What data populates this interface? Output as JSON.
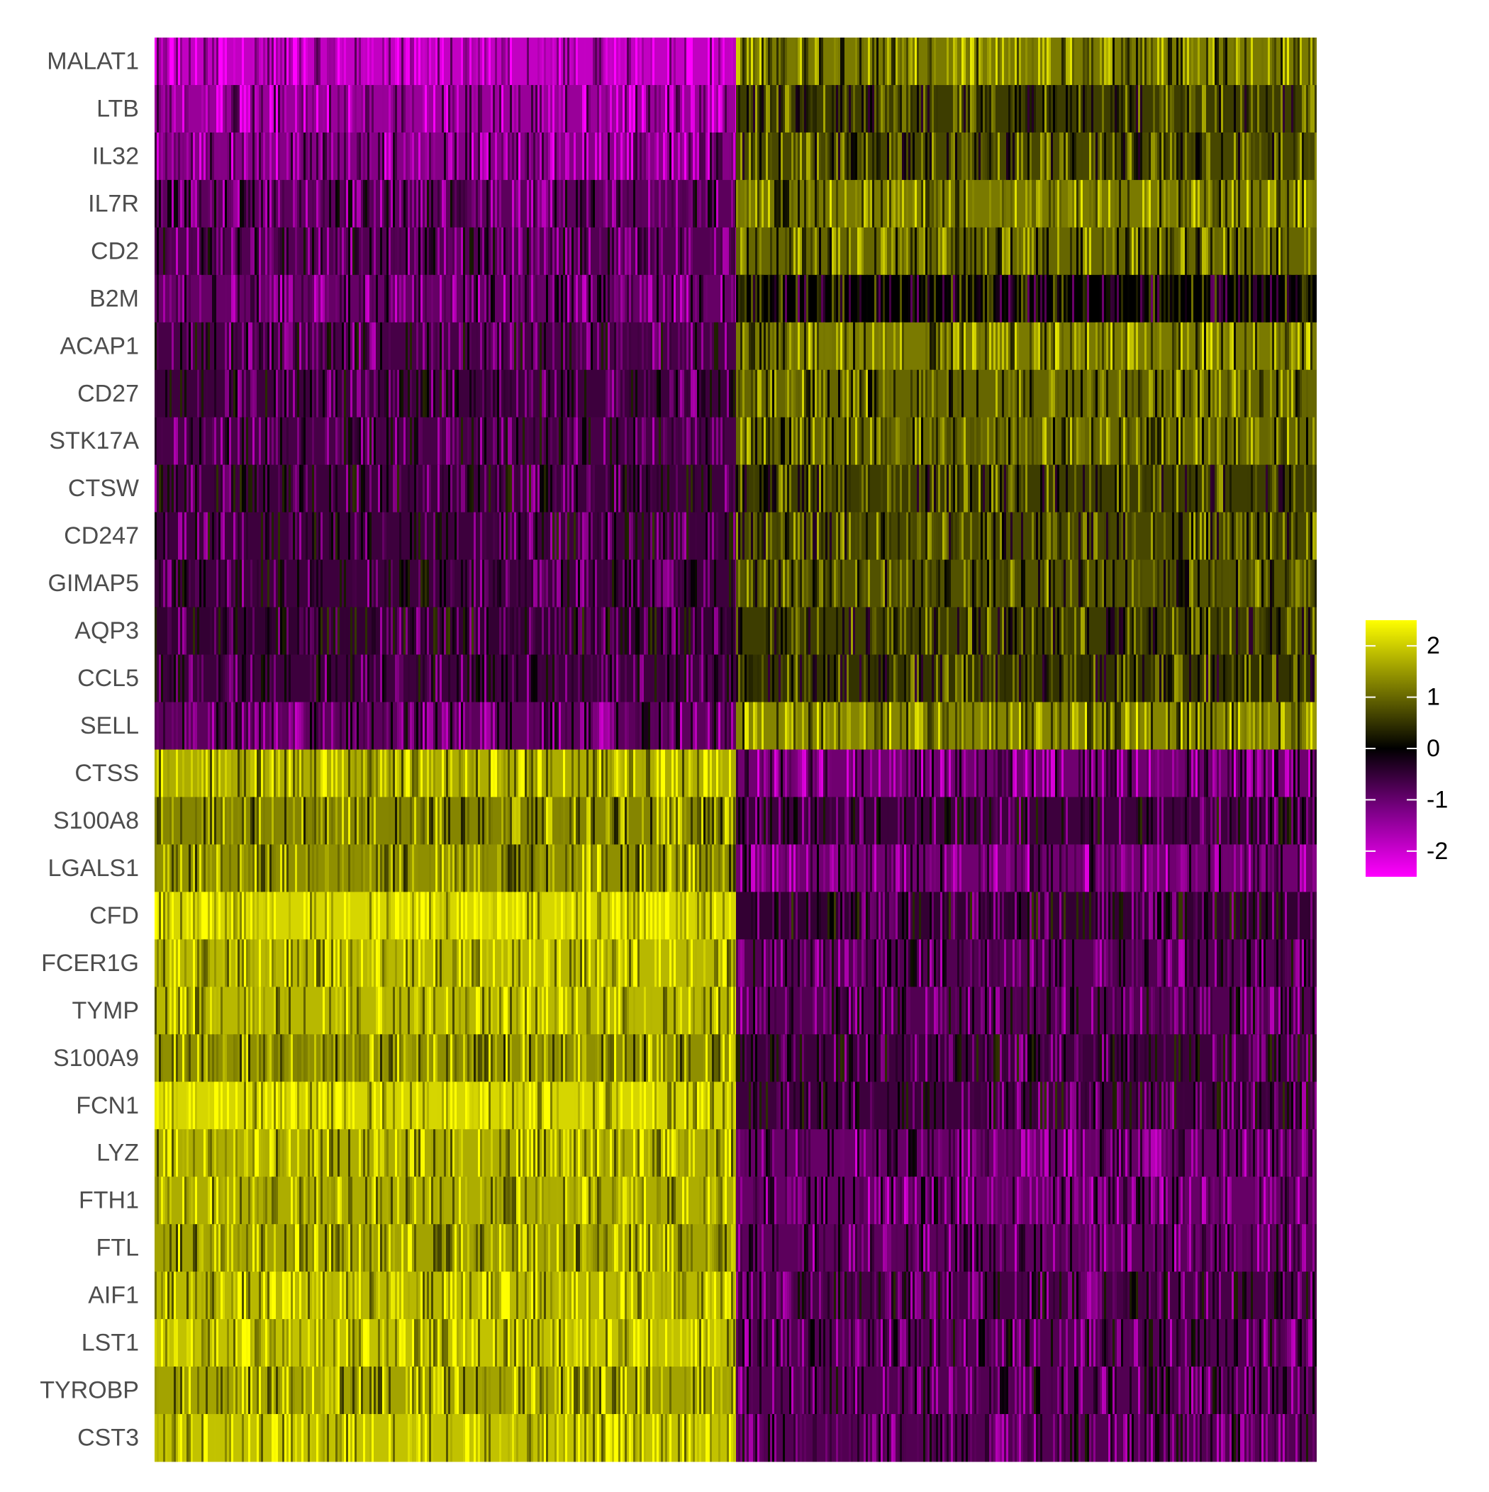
{
  "chart_data": {
    "type": "heatmap",
    "title": "",
    "xlabel": "",
    "ylabel": "",
    "rows": [
      {
        "gene": "MALAT1",
        "group1_mean": -1.9,
        "group2_mean": 1.2
      },
      {
        "gene": "LTB",
        "group1_mean": -1.5,
        "group2_mean": 0.6
      },
      {
        "gene": "IL32",
        "group1_mean": -1.3,
        "group2_mean": 0.7
      },
      {
        "gene": "IL7R",
        "group1_mean": -0.9,
        "group2_mean": 1.2
      },
      {
        "gene": "CD2",
        "group1_mean": -0.8,
        "group2_mean": 1.0
      },
      {
        "gene": "B2M",
        "group1_mean": -1.0,
        "group2_mean": 0.0
      },
      {
        "gene": "ACAP1",
        "group1_mean": -0.7,
        "group2_mean": 1.2
      },
      {
        "gene": "CD27",
        "group1_mean": -0.6,
        "group2_mean": 1.0
      },
      {
        "gene": "STK17A",
        "group1_mean": -0.7,
        "group2_mean": 1.0
      },
      {
        "gene": "CTSW",
        "group1_mean": -0.6,
        "group2_mean": 0.6
      },
      {
        "gene": "CD247",
        "group1_mean": -0.6,
        "group2_mean": 0.7
      },
      {
        "gene": "GIMAP5",
        "group1_mean": -0.6,
        "group2_mean": 0.8
      },
      {
        "gene": "AQP3",
        "group1_mean": -0.5,
        "group2_mean": 0.6
      },
      {
        "gene": "CCL5",
        "group1_mean": -0.6,
        "group2_mean": 0.5
      },
      {
        "gene": "SELL",
        "group1_mean": -0.9,
        "group2_mean": 1.3
      },
      {
        "gene": "CTSS",
        "group1_mean": 1.7,
        "group2_mean": -1.1
      },
      {
        "gene": "S100A8",
        "group1_mean": 1.3,
        "group2_mean": -0.6
      },
      {
        "gene": "LGALS1",
        "group1_mean": 1.4,
        "group2_mean": -1.1
      },
      {
        "gene": "CFD",
        "group1_mean": 2.1,
        "group2_mean": -0.5
      },
      {
        "gene": "FCER1G",
        "group1_mean": 1.8,
        "group2_mean": -0.8
      },
      {
        "gene": "TYMP",
        "group1_mean": 1.8,
        "group2_mean": -0.8
      },
      {
        "gene": "S100A9",
        "group1_mean": 1.4,
        "group2_mean": -0.6
      },
      {
        "gene": "FCN1",
        "group1_mean": 2.1,
        "group2_mean": -0.6
      },
      {
        "gene": "LYZ",
        "group1_mean": 1.7,
        "group2_mean": -1.0
      },
      {
        "gene": "FTH1",
        "group1_mean": 1.7,
        "group2_mean": -1.0
      },
      {
        "gene": "FTL",
        "group1_mean": 1.6,
        "group2_mean": -0.9
      },
      {
        "gene": "AIF1",
        "group1_mean": 1.8,
        "group2_mean": -0.7
      },
      {
        "gene": "LST1",
        "group1_mean": 1.9,
        "group2_mean": -0.8
      },
      {
        "gene": "TYROBP",
        "group1_mean": 1.6,
        "group2_mean": -0.8
      },
      {
        "gene": "CST3",
        "group1_mean": 1.9,
        "group2_mean": -0.8
      }
    ],
    "legend": {
      "position": "right",
      "ticks": [
        "2",
        "1",
        "0",
        "-1",
        "-2"
      ],
      "tick_values": [
        2,
        1,
        0,
        -1,
        -2
      ],
      "range": [
        -2.5,
        2.5
      ]
    },
    "colors": {
      "low": "#FF00FF",
      "mid": "#000000",
      "high": "#FFFF00"
    }
  }
}
